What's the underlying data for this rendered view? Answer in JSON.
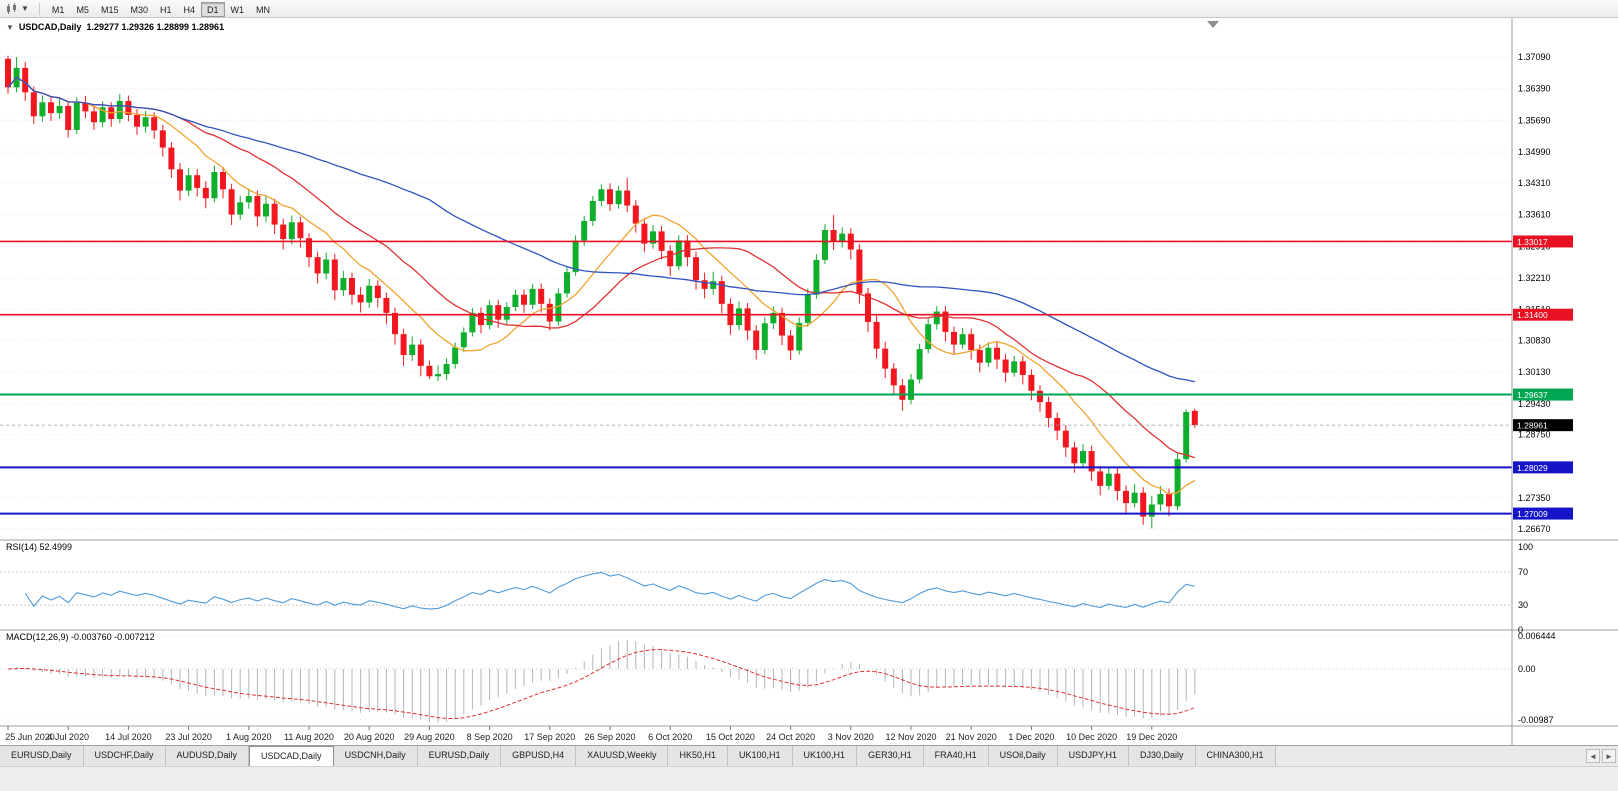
{
  "toolbar": {
    "chart_icon": "candlestick-chart-icon",
    "dropdown_icon": "caret-down-icon",
    "timeframes": [
      {
        "label": "M1",
        "active": false
      },
      {
        "label": "M5",
        "active": false
      },
      {
        "label": "M15",
        "active": false
      },
      {
        "label": "M30",
        "active": false
      },
      {
        "label": "H1",
        "active": false
      },
      {
        "label": "H4",
        "active": false
      },
      {
        "label": "D1",
        "active": true
      },
      {
        "label": "W1",
        "active": false
      },
      {
        "label": "MN",
        "active": false
      }
    ]
  },
  "chart": {
    "symbol_timeframe": "USDCAD,Daily",
    "ohlc_text": "1.29277 1.29326 1.28899 1.28961",
    "open": "1.29277",
    "high": "1.29326",
    "low": "1.28899",
    "close": "1.28961",
    "bull_color": "#0fae2c",
    "bear_color": "#f2161f",
    "price_axis": [
      "1.37090",
      "1.36390",
      "1.35690",
      "1.34990",
      "1.34310",
      "1.33610",
      "1.32910",
      "1.32210",
      "1.31510",
      "1.30830",
      "1.30130",
      "1.29430",
      "1.28750",
      "1.28050",
      "1.27350",
      "1.26670"
    ],
    "hlines": [
      {
        "price": 1.33017,
        "label": "1.33017",
        "color": "#e81123",
        "width": 1.6
      },
      {
        "price": 1.314,
        "label": "1.31400",
        "color": "#e81123",
        "width": 1.6
      },
      {
        "price": 1.29637,
        "label": "1.29637",
        "color": "#00a651",
        "width": 2
      },
      {
        "price": 1.28029,
        "label": "1.28029",
        "color": "#1414c8",
        "width": 2
      },
      {
        "price": 1.27009,
        "label": "1.27009",
        "color": "#1414c8",
        "width": 2
      }
    ],
    "current_price": {
      "price": 1.28961,
      "label": "1.28961",
      "color": "#000000"
    },
    "date_axis": [
      "25 Jun 2020",
      "4 Jul 2020",
      "14 Jul 2020",
      "23 Jul 2020",
      "1 Aug 2020",
      "11 Aug 2020",
      "20 Aug 2020",
      "29 Aug 2020",
      "8 Sep 2020",
      "17 Sep 2020",
      "26 Sep 2020",
      "6 Oct 2020",
      "15 Oct 2020",
      "24 Oct 2020",
      "3 Nov 2020",
      "12 Nov 2020",
      "21 Nov 2020",
      "1 Dec 2020",
      "10 Dec 2020",
      "19 Dec 2020"
    ]
  },
  "rsi": {
    "name": "RSI(14)",
    "value": "52.4999",
    "axis": [
      "100",
      "70",
      "30",
      "0"
    ],
    "levels": [
      70,
      30
    ],
    "color": "#4f9bd9"
  },
  "macd": {
    "name": "MACD(12,26,9)",
    "values": "-0.003760 -0.007212",
    "axis": [
      "0.006444",
      "0.00",
      "-0.00987"
    ],
    "histogram_color": "#b5b5b5",
    "signal_color": "#e03131"
  },
  "chart_data": {
    "type": "candlestick",
    "symbol": "USDCAD",
    "timeframe": "Daily",
    "price_axis_range": [
      "1.26670",
      "1.37090"
    ],
    "date_range": [
      "25 Jun 2020",
      "23 Dec 2020"
    ],
    "moving_averages": [
      {
        "name": "ma-fast",
        "period": 10,
        "color": "#efa431"
      },
      {
        "name": "ma-medium",
        "period": 21,
        "color": "#e03131"
      },
      {
        "name": "ma-slow",
        "period": 50,
        "color": "#2f54c0"
      }
    ],
    "candles": [
      [
        1.3705,
        1.3712,
        1.3628,
        1.3642
      ],
      [
        1.3642,
        1.3709,
        1.3631,
        1.3685
      ],
      [
        1.3685,
        1.3698,
        1.3612,
        1.3631
      ],
      [
        1.3631,
        1.3644,
        1.3561,
        1.3578
      ],
      [
        1.3578,
        1.3624,
        1.3566,
        1.3609
      ],
      [
        1.3609,
        1.3621,
        1.3568,
        1.3585
      ],
      [
        1.3585,
        1.3619,
        1.3572,
        1.3601
      ],
      [
        1.3601,
        1.3612,
        1.3531,
        1.3548
      ],
      [
        1.3548,
        1.362,
        1.3539,
        1.3608
      ],
      [
        1.3608,
        1.3623,
        1.3574,
        1.3589
      ],
      [
        1.3589,
        1.3601,
        1.3548,
        1.3565
      ],
      [
        1.3565,
        1.3611,
        1.3554,
        1.3598
      ],
      [
        1.3598,
        1.3609,
        1.3555,
        1.3572
      ],
      [
        1.3572,
        1.3627,
        1.3563,
        1.3612
      ],
      [
        1.3612,
        1.3624,
        1.3567,
        1.3581
      ],
      [
        1.3581,
        1.3594,
        1.3537,
        1.3555
      ],
      [
        1.3555,
        1.359,
        1.3542,
        1.3576
      ],
      [
        1.3576,
        1.3587,
        1.3528,
        1.3547
      ],
      [
        1.3547,
        1.3559,
        1.3489,
        1.3509
      ],
      [
        1.3509,
        1.3521,
        1.3442,
        1.3461
      ],
      [
        1.3461,
        1.3475,
        1.3392,
        1.3414
      ],
      [
        1.3414,
        1.3464,
        1.3402,
        1.3448
      ],
      [
        1.3448,
        1.3461,
        1.3401,
        1.342
      ],
      [
        1.342,
        1.3435,
        1.3375,
        1.3397
      ],
      [
        1.3397,
        1.3469,
        1.3388,
        1.3455
      ],
      [
        1.3455,
        1.3466,
        1.3397,
        1.3417
      ],
      [
        1.3417,
        1.3429,
        1.3338,
        1.3361
      ],
      [
        1.3361,
        1.3403,
        1.3349,
        1.3388
      ],
      [
        1.3388,
        1.3418,
        1.3374,
        1.3402
      ],
      [
        1.3402,
        1.3414,
        1.3335,
        1.3357
      ],
      [
        1.3357,
        1.3401,
        1.3344,
        1.3385
      ],
      [
        1.3385,
        1.3396,
        1.3318,
        1.3339
      ],
      [
        1.3339,
        1.3352,
        1.3284,
        1.3307
      ],
      [
        1.3307,
        1.3359,
        1.3295,
        1.3344
      ],
      [
        1.3344,
        1.3356,
        1.3288,
        1.3309
      ],
      [
        1.3309,
        1.332,
        1.3245,
        1.3267
      ],
      [
        1.3267,
        1.3279,
        1.3209,
        1.3231
      ],
      [
        1.3231,
        1.3277,
        1.3218,
        1.3262
      ],
      [
        1.3262,
        1.3274,
        1.3172,
        1.3194
      ],
      [
        1.3194,
        1.3237,
        1.3181,
        1.3221
      ],
      [
        1.3221,
        1.3233,
        1.3162,
        1.3184
      ],
      [
        1.3184,
        1.3201,
        1.3145,
        1.3167
      ],
      [
        1.3167,
        1.3219,
        1.3155,
        1.3204
      ],
      [
        1.3204,
        1.3216,
        1.3156,
        1.3177
      ],
      [
        1.3177,
        1.3189,
        1.3119,
        1.3144
      ],
      [
        1.3144,
        1.3156,
        1.3074,
        1.3097
      ],
      [
        1.3097,
        1.3109,
        1.3027,
        1.3051
      ],
      [
        1.3051,
        1.3092,
        1.3038,
        1.3074
      ],
      [
        1.3074,
        1.3086,
        1.3004,
        1.3027
      ],
      [
        1.3027,
        1.3039,
        1.2998,
        1.3004
      ],
      [
        1.3004,
        1.3028,
        1.2994,
        1.3009
      ],
      [
        1.3009,
        1.3044,
        1.2996,
        1.3031
      ],
      [
        1.3031,
        1.3079,
        1.3021,
        1.3068
      ],
      [
        1.3068,
        1.3112,
        1.3057,
        1.3101
      ],
      [
        1.3101,
        1.3155,
        1.3092,
        1.3144
      ],
      [
        1.3144,
        1.3156,
        1.3099,
        1.3117
      ],
      [
        1.3117,
        1.3172,
        1.3108,
        1.3161
      ],
      [
        1.3161,
        1.3173,
        1.3111,
        1.3129
      ],
      [
        1.3129,
        1.3168,
        1.3117,
        1.3157
      ],
      [
        1.3157,
        1.3195,
        1.3148,
        1.3184
      ],
      [
        1.3184,
        1.3196,
        1.3144,
        1.3162
      ],
      [
        1.3162,
        1.3208,
        1.3153,
        1.3197
      ],
      [
        1.3197,
        1.3209,
        1.3145,
        1.3164
      ],
      [
        1.3164,
        1.3176,
        1.3105,
        1.3125
      ],
      [
        1.3125,
        1.3198,
        1.3116,
        1.3187
      ],
      [
        1.3187,
        1.3245,
        1.3178,
        1.3234
      ],
      [
        1.3234,
        1.3315,
        1.3226,
        1.3304
      ],
      [
        1.3304,
        1.3358,
        1.3292,
        1.3347
      ],
      [
        1.3347,
        1.3402,
        1.3336,
        1.3391
      ],
      [
        1.3391,
        1.3428,
        1.3379,
        1.3417
      ],
      [
        1.3417,
        1.343,
        1.3369,
        1.3384
      ],
      [
        1.3384,
        1.3425,
        1.3374,
        1.3414
      ],
      [
        1.3414,
        1.3442,
        1.3366,
        1.3381
      ],
      [
        1.3381,
        1.3393,
        1.3321,
        1.3341
      ],
      [
        1.3341,
        1.3353,
        1.3278,
        1.3297
      ],
      [
        1.3297,
        1.3338,
        1.3286,
        1.3324
      ],
      [
        1.3324,
        1.3336,
        1.3262,
        1.3281
      ],
      [
        1.3281,
        1.3293,
        1.3226,
        1.3247
      ],
      [
        1.3247,
        1.3316,
        1.3238,
        1.3304
      ],
      [
        1.3304,
        1.3316,
        1.3247,
        1.3267
      ],
      [
        1.3267,
        1.3279,
        1.3195,
        1.3216
      ],
      [
        1.3216,
        1.3233,
        1.3176,
        1.3197
      ],
      [
        1.3197,
        1.3235,
        1.3184,
        1.3214
      ],
      [
        1.3214,
        1.3226,
        1.3143,
        1.3164
      ],
      [
        1.3164,
        1.3176,
        1.3096,
        1.3117
      ],
      [
        1.3117,
        1.3169,
        1.3106,
        1.3154
      ],
      [
        1.3154,
        1.3166,
        1.3084,
        1.3105
      ],
      [
        1.3105,
        1.3117,
        1.3041,
        1.3062
      ],
      [
        1.3062,
        1.3135,
        1.3053,
        1.3121
      ],
      [
        1.3121,
        1.3159,
        1.3108,
        1.3144
      ],
      [
        1.3144,
        1.3156,
        1.3073,
        1.3094
      ],
      [
        1.3094,
        1.3106,
        1.304,
        1.3061
      ],
      [
        1.3061,
        1.3134,
        1.3052,
        1.3122
      ],
      [
        1.3122,
        1.3198,
        1.3113,
        1.3184
      ],
      [
        1.3184,
        1.3274,
        1.3175,
        1.3261
      ],
      [
        1.3261,
        1.334,
        1.3252,
        1.3327
      ],
      [
        1.3327,
        1.336,
        1.3283,
        1.3302
      ],
      [
        1.3302,
        1.3333,
        1.3288,
        1.3319
      ],
      [
        1.3319,
        1.3331,
        1.3262,
        1.3284
      ],
      [
        1.3284,
        1.3296,
        1.3165,
        1.3187
      ],
      [
        1.3187,
        1.3199,
        1.3102,
        1.3124
      ],
      [
        1.3124,
        1.3139,
        1.3043,
        1.3065
      ],
      [
        1.3065,
        1.308,
        1.3,
        1.3021
      ],
      [
        1.3021,
        1.3033,
        1.2962,
        1.2984
      ],
      [
        1.2984,
        1.2998,
        1.2928,
        1.2952
      ],
      [
        1.2952,
        1.3009,
        1.2942,
        1.2997
      ],
      [
        1.2997,
        1.3076,
        1.2988,
        1.3064
      ],
      [
        1.3064,
        1.3131,
        1.3055,
        1.3119
      ],
      [
        1.3119,
        1.3159,
        1.3107,
        1.3147
      ],
      [
        1.3147,
        1.3159,
        1.3081,
        1.3102
      ],
      [
        1.3102,
        1.3114,
        1.3052,
        1.3074
      ],
      [
        1.3074,
        1.3111,
        1.3065,
        1.3097
      ],
      [
        1.3097,
        1.3109,
        1.3041,
        1.3062
      ],
      [
        1.3062,
        1.3074,
        1.3013,
        1.3034
      ],
      [
        1.3034,
        1.3079,
        1.3025,
        1.3067
      ],
      [
        1.3067,
        1.3079,
        1.302,
        1.3041
      ],
      [
        1.3041,
        1.3053,
        1.2991,
        1.3012
      ],
      [
        1.3012,
        1.3049,
        1.3003,
        1.3037
      ],
      [
        1.3037,
        1.3049,
        1.2986,
        1.3007
      ],
      [
        1.3007,
        1.3019,
        1.2951,
        1.2972
      ],
      [
        1.2972,
        1.2984,
        1.2926,
        1.2947
      ],
      [
        1.2947,
        1.2959,
        1.2891,
        1.2912
      ],
      [
        1.2912,
        1.2924,
        1.2863,
        1.2884
      ],
      [
        1.2884,
        1.2896,
        1.2826,
        1.2847
      ],
      [
        1.2847,
        1.2859,
        1.2791,
        1.2812
      ],
      [
        1.2812,
        1.2854,
        1.2803,
        1.2839
      ],
      [
        1.2839,
        1.2851,
        1.2773,
        1.2794
      ],
      [
        1.2794,
        1.2806,
        1.2741,
        1.2762
      ],
      [
        1.2762,
        1.2804,
        1.2753,
        1.2789
      ],
      [
        1.2789,
        1.2801,
        1.273,
        1.2751
      ],
      [
        1.2751,
        1.2763,
        1.2703,
        1.2724
      ],
      [
        1.2724,
        1.2766,
        1.2715,
        1.2747
      ],
      [
        1.2747,
        1.2759,
        1.2676,
        1.2694
      ],
      [
        1.2694,
        1.274,
        1.2668,
        1.2721
      ],
      [
        1.2721,
        1.2762,
        1.2706,
        1.2744
      ],
      [
        1.2744,
        1.2756,
        1.2695,
        1.2717
      ],
      [
        1.2717,
        1.2833,
        1.2708,
        1.2821
      ],
      [
        1.2821,
        1.2931,
        1.2814,
        1.2925
      ],
      [
        1.29277,
        1.29326,
        1.28899,
        1.28961
      ]
    ]
  },
  "tabs": [
    {
      "label": "EURUSD,Daily",
      "active": false
    },
    {
      "label": "USDCHF,Daily",
      "active": false
    },
    {
      "label": "AUDUSD,Daily",
      "active": false
    },
    {
      "label": "USDCAD,Daily",
      "active": true
    },
    {
      "label": "USDCNH,Daily",
      "active": false
    },
    {
      "label": "EURUSD,Daily",
      "active": false
    },
    {
      "label": "GBPUSD,H4",
      "active": false
    },
    {
      "label": "XAUUSD,Weekly",
      "active": false
    },
    {
      "label": "HK50,H1",
      "active": false
    },
    {
      "label": "UK100,H1",
      "active": false
    },
    {
      "label": "UK100,H1",
      "active": false
    },
    {
      "label": "GER30,H1",
      "active": false
    },
    {
      "label": "FRA40,H1",
      "active": false
    },
    {
      "label": "USOil,Daily",
      "active": false
    },
    {
      "label": "USDJPY,H1",
      "active": false
    },
    {
      "label": "DJ30,Daily",
      "active": false
    },
    {
      "label": "CHINA300,H1",
      "active": false
    }
  ],
  "tabbar": {
    "scroll_left": "◄",
    "scroll_right": "►"
  }
}
